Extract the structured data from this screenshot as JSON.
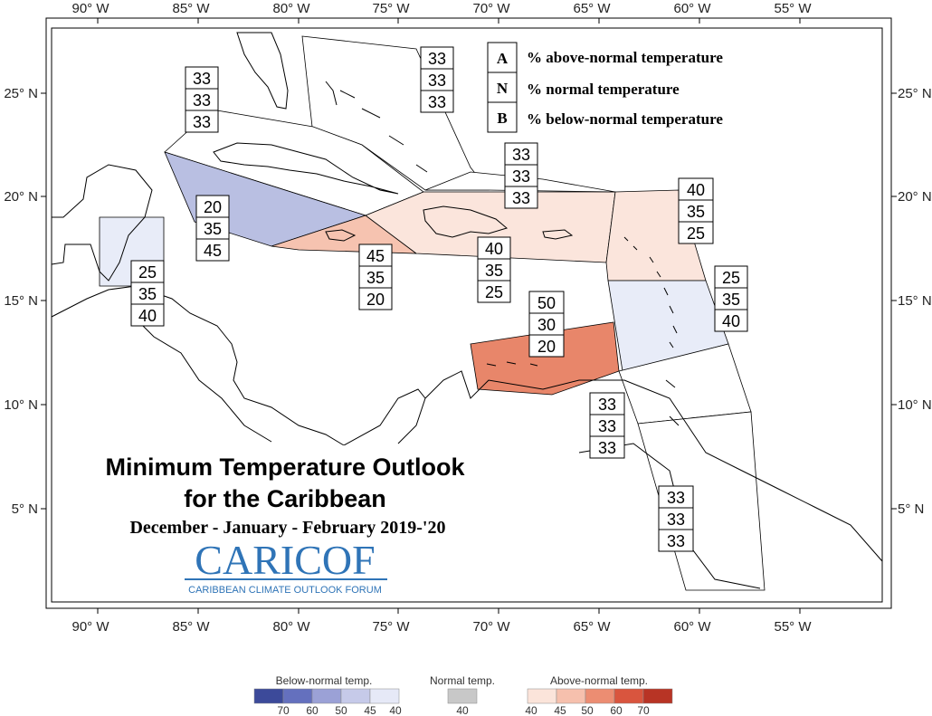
{
  "map": {
    "lon_ticks": [
      "90° W",
      "85° W",
      "80° W",
      "75° W",
      "70° W",
      "65° W",
      "60° W",
      "55° W"
    ],
    "lat_ticks": [
      "25° N",
      "20° N",
      "15° N",
      "10° N",
      "5° N"
    ]
  },
  "key": [
    {
      "letter": "A",
      "text": "% above-normal temperature"
    },
    {
      "letter": "N",
      "text": "% normal temperature"
    },
    {
      "letter": "B",
      "text": "% below-normal temperature"
    }
  ],
  "title": {
    "line1": "Minimum Temperature Outlook",
    "line2": "for the Caribbean",
    "season": "December - January - February 2019-'20"
  },
  "logo": {
    "text": "CARICOF",
    "subtitle": "CARIBBEAN CLIMATE OUTLOOK FORUM"
  },
  "regions": [
    {
      "name": "bahamas",
      "values": [
        "33",
        "33",
        "33"
      ],
      "fill": "#ffffff"
    },
    {
      "name": "cuba",
      "values": [
        "33",
        "33",
        "33"
      ],
      "fill": "#ffffff"
    },
    {
      "name": "cayman",
      "values": [
        "20",
        "35",
        "45"
      ],
      "fill": "#b9bfe2"
    },
    {
      "name": "belize",
      "values": [
        "25",
        "35",
        "40"
      ],
      "fill": "#e8ecf8"
    },
    {
      "name": "jamaica",
      "values": [
        "45",
        "35",
        "20"
      ],
      "fill": "#f6c3b0"
    },
    {
      "name": "hispaniola-pr",
      "values": [
        "40",
        "35",
        "25"
      ],
      "fill": "#fbe5dc"
    },
    {
      "name": "turks-caicos",
      "values": [
        "33",
        "33",
        "33"
      ],
      "fill": "#ffffff"
    },
    {
      "name": "leeward",
      "values": [
        "40",
        "35",
        "25"
      ],
      "fill": "#fbe5dc"
    },
    {
      "name": "windward",
      "values": [
        "25",
        "35",
        "40"
      ],
      "fill": "#e8ecf8"
    },
    {
      "name": "abc-islands",
      "values": [
        "50",
        "30",
        "20"
      ],
      "fill": "#e8866a"
    },
    {
      "name": "trinidad",
      "values": [
        "33",
        "33",
        "33"
      ],
      "fill": "#ffffff"
    },
    {
      "name": "guianas",
      "values": [
        "33",
        "33",
        "33"
      ],
      "fill": "#ffffff"
    }
  ],
  "colorbar": {
    "below": {
      "title": "Below-normal temp.",
      "labels": [
        "70",
        "60",
        "50",
        "45",
        "40"
      ],
      "colors": [
        "#3c4a9a",
        "#6470be",
        "#9ba1d6",
        "#c6cae9",
        "#e6e9f7"
      ]
    },
    "normal": {
      "title": "Normal temp.",
      "labels": [
        "40"
      ],
      "colors": [
        "#c8c8c8"
      ]
    },
    "above": {
      "title": "Above-normal temp.",
      "labels": [
        "40",
        "45",
        "50",
        "60",
        "70"
      ],
      "colors": [
        "#fbe4da",
        "#f6c0ad",
        "#ec8d72",
        "#d9553e",
        "#b83425"
      ]
    }
  }
}
